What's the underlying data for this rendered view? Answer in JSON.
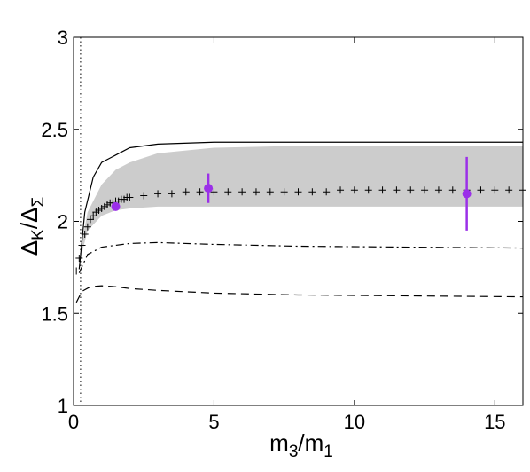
{
  "chart_data": {
    "type": "line",
    "title": "",
    "xlabel": {
      "main": "m",
      "sub1": "3",
      "mid": "/m",
      "sub2": "1"
    },
    "ylabel": {
      "main": "Δ",
      "sub1": "K",
      "mid": "/Δ",
      "sub2": "Σ"
    },
    "xlim": [
      0,
      16
    ],
    "ylim": [
      1,
      3
    ],
    "xticks": [
      0,
      5,
      10,
      15
    ],
    "xtick_labels": [
      "0",
      "5",
      "10",
      "15"
    ],
    "yticks": [
      1,
      1.5,
      2,
      2.5,
      3
    ],
    "ytick_labels": [
      "1",
      "1.5",
      "2",
      "2.5",
      "3"
    ],
    "grid": false,
    "vertical_dotted_line_x": 0.25,
    "band": {
      "x": [
        0.25,
        0.5,
        1,
        1.5,
        2,
        3,
        5,
        8,
        12,
        16
      ],
      "upper": [
        1.85,
        2.05,
        2.2,
        2.28,
        2.32,
        2.37,
        2.4,
        2.41,
        2.41,
        2.41
      ],
      "lower": [
        1.8,
        1.95,
        2.03,
        2.06,
        2.07,
        2.08,
        2.08,
        2.08,
        2.08,
        2.08
      ],
      "color": "#cccccc"
    },
    "series": [
      {
        "style": "solid",
        "x": [
          0.2,
          0.4,
          0.7,
          1,
          1.5,
          2,
          3,
          5,
          8,
          12,
          16
        ],
        "y": [
          1.74,
          2.05,
          2.24,
          2.32,
          2.36,
          2.4,
          2.42,
          2.43,
          2.43,
          2.43,
          2.43
        ]
      },
      {
        "style": "plus",
        "x": [
          0.1,
          0.2,
          0.3,
          0.4,
          0.5,
          0.6,
          0.7,
          0.8,
          0.9,
          1.0,
          1.1,
          1.2,
          1.3,
          1.4,
          1.5,
          1.6,
          1.7,
          1.8,
          1.9,
          2.0,
          2.5,
          3.0,
          3.5,
          4.0,
          4.5,
          5.0,
          5.5,
          6.0,
          6.5,
          7.0,
          7.5,
          8.0,
          8.5,
          9.0,
          9.5,
          10.0,
          10.5,
          11.0,
          11.5,
          12.0,
          12.5,
          13.0,
          13.5,
          14.0,
          14.5,
          15.0,
          15.5,
          16.0
        ],
        "y": [
          1.73,
          1.8,
          1.87,
          1.93,
          1.97,
          2.01,
          2.03,
          2.05,
          2.06,
          2.07,
          2.08,
          2.09,
          2.1,
          2.1,
          2.11,
          2.11,
          2.12,
          2.12,
          2.13,
          2.13,
          2.14,
          2.15,
          2.15,
          2.16,
          2.16,
          2.16,
          2.16,
          2.16,
          2.16,
          2.16,
          2.16,
          2.16,
          2.16,
          2.16,
          2.17,
          2.17,
          2.17,
          2.17,
          2.17,
          2.17,
          2.17,
          2.17,
          2.17,
          2.17,
          2.17,
          2.17,
          2.17,
          2.17
        ]
      },
      {
        "style": "dashdot",
        "x": [
          0.2,
          0.5,
          1,
          1.5,
          2,
          3,
          5,
          8,
          12,
          16
        ],
        "y": [
          1.72,
          1.82,
          1.86,
          1.87,
          1.88,
          1.885,
          1.875,
          1.865,
          1.86,
          1.855
        ]
      },
      {
        "style": "dashed",
        "x": [
          0.1,
          0.3,
          0.6,
          1,
          1.5,
          2,
          3,
          5,
          8,
          12,
          16
        ],
        "y": [
          1.56,
          1.62,
          1.645,
          1.65,
          1.645,
          1.635,
          1.625,
          1.61,
          1.6,
          1.595,
          1.59
        ]
      }
    ],
    "points": [
      {
        "x": 1.5,
        "y": 2.08,
        "yerr": 0.02
      },
      {
        "x": 4.8,
        "y": 2.18,
        "yerr": 0.08
      },
      {
        "x": 14.0,
        "y": 2.15,
        "yerr": 0.2
      }
    ],
    "points_color": "#9b30e8"
  }
}
